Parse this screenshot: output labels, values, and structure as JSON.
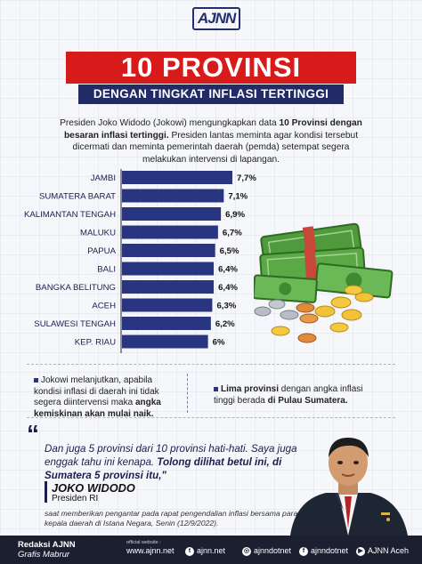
{
  "header": {
    "logo": "AJNN",
    "title": "10 PROVINSI",
    "subtitle": "DENGAN TINGKAT INFLASI TERTINGGI"
  },
  "intro": {
    "part1": "Presiden Joko Widodo (Jokowi) mengungkapkan data ",
    "bold": "10 Provinsi dengan besaran inflasi tertinggi.",
    "part2": " Presiden lantas meminta agar kondisi tersebut dicermati dan meminta pemerintah daerah (pemda) setempat segera melakukan intervensi di lapangan."
  },
  "chart_data": {
    "type": "bar",
    "orientation": "horizontal",
    "categories": [
      "JAMBI",
      "SUMATERA BARAT",
      "KALIMANTAN TENGAH",
      "MALUKU",
      "PAPUA",
      "BALI",
      "BANGKA BELITUNG",
      "ACEH",
      "SULAWESI TENGAH",
      "KEP. RIAU"
    ],
    "values": [
      7.7,
      7.1,
      6.9,
      6.7,
      6.5,
      6.4,
      6.4,
      6.3,
      6.2,
      6.0
    ],
    "value_labels": [
      "7,7%",
      "7,1%",
      "6,9%",
      "6,7%",
      "6,5%",
      "6,4%",
      "6,4%",
      "6,3%",
      "6,2%",
      "6%"
    ],
    "bar_color": "#2a3582",
    "title": "",
    "xlabel": "",
    "ylabel": ""
  },
  "notes": {
    "left_text": "Jokowi melanjutkan, apabila kondisi inflasi di daerah ini tidak segera diintervensi maka ",
    "left_bold": "angka kemiskinan akan mulai naik.",
    "right_bold": "Lima provinsi",
    "right_text": " dengan angka inflasi tinggi berada ",
    "right_bold2": "di Pulau Sumatera."
  },
  "quote": {
    "text": "Dan juga 5 provinsi dari 10 provinsi hati-hati. Saya juga enggak tahu ini kenapa. ",
    "bold": "Tolong dilihat betul ini, di Sumatera 5 provinsi itu,\"",
    "speaker": "JOKO WIDODO",
    "role": "Presiden RI",
    "caption": "saat memberikan pengantar pada rapat pengendalian inflasi bersama para kepala daerah di Istana Negara, Senin (12/9/2022)."
  },
  "footer": {
    "credit1": "Redaksi AJNN",
    "credit2": "Grafis Mabrur",
    "website_label": "official website :",
    "website": "www.ajnn.net",
    "twitter": "ajnn.net",
    "instagram": "ajnndotnet",
    "facebook": "ajnndotnet",
    "youtube": "AJNN Aceh"
  },
  "colors": {
    "accent_red": "#d71a1a",
    "navy": "#222b66",
    "bar": "#2a3582"
  }
}
